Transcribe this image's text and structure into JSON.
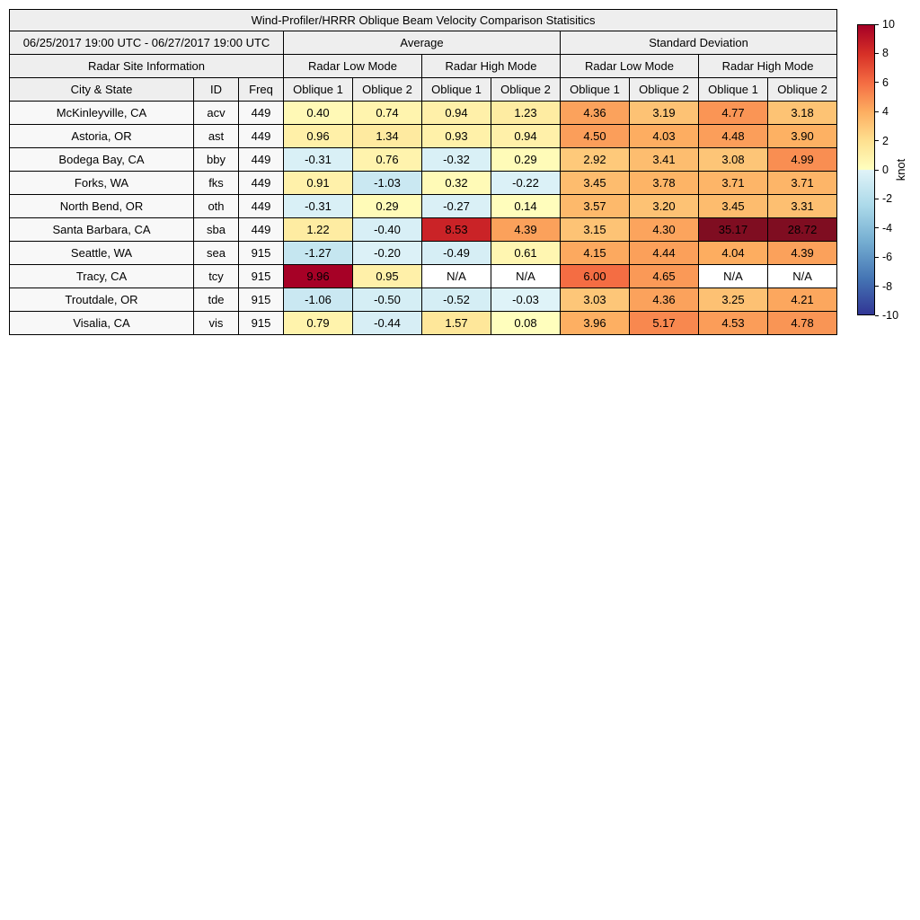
{
  "title": "Wind-Profiler/HRRR Oblique Beam Velocity Comparison Statisitics",
  "header": {
    "date_range": "06/25/2017 19:00 UTC - 06/27/2017 19:00 UTC",
    "site_info_label": "Radar Site Information",
    "group_labels": [
      "Average",
      "Standard Deviation"
    ],
    "mode_labels": [
      "Radar Low Mode",
      "Radar High Mode",
      "Radar Low Mode",
      "Radar High Mode"
    ],
    "col_headers": [
      "City & State",
      "ID",
      "Freq",
      "Oblique 1",
      "Oblique 2",
      "Oblique 1",
      "Oblique 2",
      "Oblique 1",
      "Oblique 2",
      "Oblique 1",
      "Oblique 2"
    ]
  },
  "chart_data": {
    "type": "heatmap",
    "title": "Wind-Profiler/HRRR Oblique Beam Velocity Comparison Statisitics",
    "columns": [
      "Average Low Oblique 1",
      "Average Low Oblique 2",
      "Average High Oblique 1",
      "Average High Oblique 2",
      "StdDev Low Oblique 1",
      "StdDev Low Oblique 2",
      "StdDev High Oblique 1",
      "StdDev High Oblique 2"
    ],
    "rows": [
      {
        "city": "McKinleyville, CA",
        "id": "acv",
        "freq": "449",
        "values": [
          "0.40",
          "0.74",
          "0.94",
          "1.23",
          "4.36",
          "3.19",
          "4.77",
          "3.18"
        ]
      },
      {
        "city": "Astoria, OR",
        "id": "ast",
        "freq": "449",
        "values": [
          "0.96",
          "1.34",
          "0.93",
          "0.94",
          "4.50",
          "4.03",
          "4.48",
          "3.90"
        ]
      },
      {
        "city": "Bodega Bay, CA",
        "id": "bby",
        "freq": "449",
        "values": [
          "-0.31",
          "0.76",
          "-0.32",
          "0.29",
          "2.92",
          "3.41",
          "3.08",
          "4.99"
        ]
      },
      {
        "city": "Forks, WA",
        "id": "fks",
        "freq": "449",
        "values": [
          "0.91",
          "-1.03",
          "0.32",
          "-0.22",
          "3.45",
          "3.78",
          "3.71",
          "3.71"
        ]
      },
      {
        "city": "North Bend, OR",
        "id": "oth",
        "freq": "449",
        "values": [
          "-0.31",
          "0.29",
          "-0.27",
          "0.14",
          "3.57",
          "3.20",
          "3.45",
          "3.31"
        ]
      },
      {
        "city": "Santa Barbara, CA",
        "id": "sba",
        "freq": "449",
        "values": [
          "1.22",
          "-0.40",
          "8.53",
          "4.39",
          "3.15",
          "4.30",
          "35.17",
          "28.72"
        ]
      },
      {
        "city": "Seattle, WA",
        "id": "sea",
        "freq": "915",
        "values": [
          "-1.27",
          "-0.20",
          "-0.49",
          "0.61",
          "4.15",
          "4.44",
          "4.04",
          "4.39"
        ]
      },
      {
        "city": "Tracy, CA",
        "id": "tcy",
        "freq": "915",
        "values": [
          "9.96",
          "0.95",
          "N/A",
          "N/A",
          "6.00",
          "4.65",
          "N/A",
          "N/A"
        ]
      },
      {
        "city": "Troutdale, OR",
        "id": "tde",
        "freq": "915",
        "values": [
          "-1.06",
          "-0.50",
          "-0.52",
          "-0.03",
          "3.03",
          "4.36",
          "3.25",
          "4.21"
        ]
      },
      {
        "city": "Visalia, CA",
        "id": "vis",
        "freq": "915",
        "values": [
          "0.79",
          "-0.44",
          "1.57",
          "0.08",
          "3.96",
          "5.17",
          "4.53",
          "4.78"
        ]
      }
    ],
    "colorbar": {
      "label": "knot",
      "min": -10,
      "max": 10,
      "ticks": [
        10,
        8,
        6,
        4,
        2,
        0,
        -2,
        -4,
        -6,
        -8,
        -10
      ],
      "colormap": "RdYlBu_r",
      "na_color": "#ffffff"
    }
  }
}
